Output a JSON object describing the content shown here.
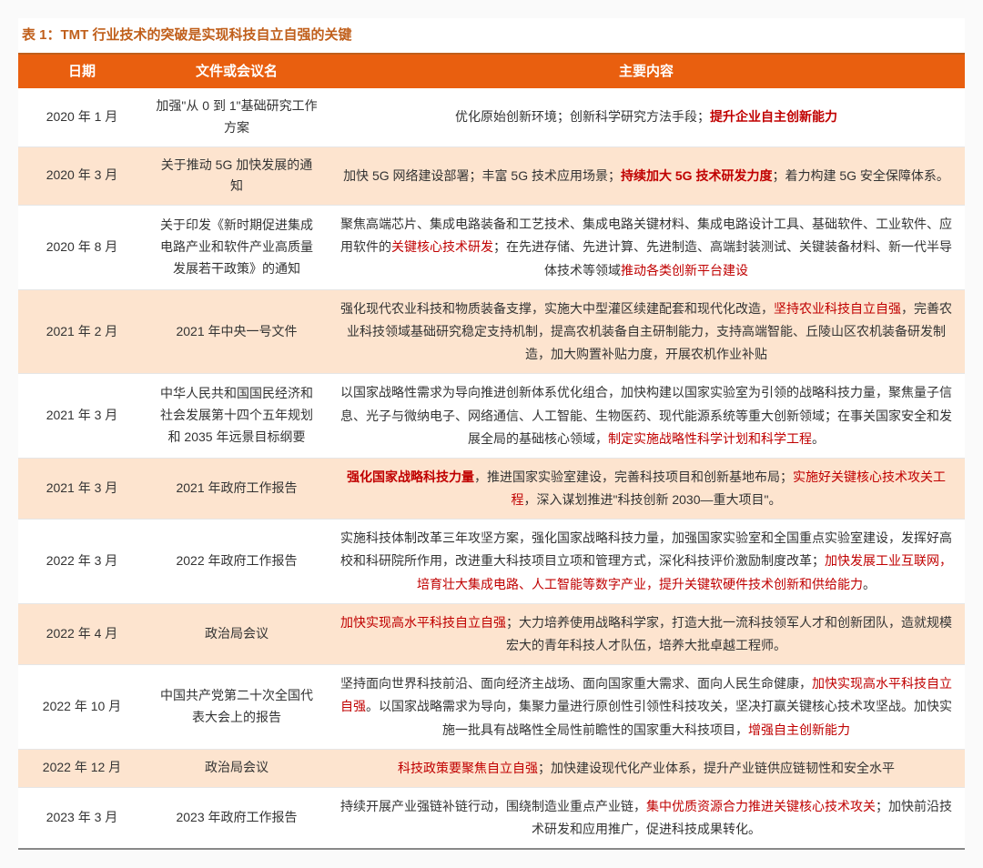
{
  "title": "表 1：TMT 行业技术的突破是实现科技自立自强的关键",
  "headers": {
    "c1": "日期",
    "c2": "文件或会议名",
    "c3": "主要内容"
  },
  "rows": [
    {
      "date": "2020 年 1 月",
      "doc": "加强\"从 0 到 1\"基础研究工作方案",
      "parts": [
        "优化原始创新环境；创新科学研究方法手段；",
        [
          "hl bold",
          "提升企业自主创新能力"
        ]
      ]
    },
    {
      "date": "2020 年 3 月",
      "doc": "关于推动 5G 加快发展的通知",
      "parts": [
        "加快 5G 网络建设部署；丰富 5G 技术应用场景；",
        [
          "hl bold",
          "持续加大 5G 技术研发力度"
        ],
        "；着力构建 5G 安全保障体系。"
      ]
    },
    {
      "date": "2020 年 8 月",
      "doc": "关于印发《新时期促进集成电路产业和软件产业高质量发展若干政策》的通知",
      "parts": [
        "聚焦高端芯片、集成电路装备和工艺技术、集成电路关键材料、集成电路设计工具、基础软件、工业软件、应用软件的",
        [
          "hl",
          "关键核心技术研发"
        ],
        "；在先进存储、先进计算、先进制造、高端封装测试、关键装备材料、新一代半导体技术等领域",
        [
          "hl",
          "推动各类创新平台建设"
        ]
      ]
    },
    {
      "date": "2021 年 2 月",
      "doc": "2021 年中央一号文件",
      "parts": [
        "强化现代农业科技和物质装备支撑，实施大中型灌区续建配套和现代化改造，",
        [
          "hl",
          "坚持农业科技自立自强"
        ],
        "，完善农业科技领域基础研究稳定支持机制，提高农机装备自主研制能力，支持高端智能、丘陵山区农机装备研发制造，加大购置补贴力度，开展农机作业补贴"
      ]
    },
    {
      "date": "2021 年 3 月",
      "doc": "中华人民共和国国民经济和社会发展第十四个五年规划和 2035 年远景目标纲要",
      "parts": [
        "以国家战略性需求为导向推进创新体系优化组合，加快构建以国家实验室为引领的战略科技力量，聚焦量子信息、光子与微纳电子、网络通信、人工智能、生物医药、现代能源系统等重大创新领域；在事关国家安全和发展全局的基础核心领域，",
        [
          "hl",
          "制定实施战略性科学计划和科学工程"
        ],
        "。"
      ]
    },
    {
      "date": "2021 年 3 月",
      "doc": "2021 年政府工作报告",
      "parts": [
        [
          "hl bold",
          "强化国家战略科技力量"
        ],
        "，推进国家实验室建设，完善科技项目和创新基地布局；",
        [
          "hl",
          "实施好关键核心技术攻关工程"
        ],
        "，深入谋划推进\"科技创新 2030—重大项目\"。"
      ]
    },
    {
      "date": "2022 年 3 月",
      "doc": "2022 年政府工作报告",
      "parts": [
        "实施科技体制改革三年攻坚方案，强化国家战略科技力量，加强国家实验室和全国重点实验室建设，发挥好高校和科研院所作用，改进重大科技项目立项和管理方式，深化科技评价激励制度改革；",
        [
          "hl",
          "加快发展工业互联网，培育壮大集成电路、人工智能等数字产业，提升关键软硬件技术创新和供给能力"
        ],
        "。"
      ]
    },
    {
      "date": "2022 年 4 月",
      "doc": "政治局会议",
      "parts": [
        [
          "hl",
          "加快实现高水平科技自立自强"
        ],
        "；大力培养使用战略科学家，打造大批一流科技领军人才和创新团队，造就规模宏大的青年科技人才队伍，培养大批卓越工程师。"
      ]
    },
    {
      "date": "2022 年 10 月",
      "doc": "中国共产党第二十次全国代表大会上的报告",
      "parts": [
        "坚持面向世界科技前沿、面向经济主战场、面向国家重大需求、面向人民生命健康，",
        [
          "hl",
          "加快实现高水平科技自立自强"
        ],
        "。以国家战略需求为导向，集聚力量进行原创性引领性科技攻关，坚决打赢关键核心技术攻坚战。加快实施一批具有战略性全局性前瞻性的国家重大科技项目，",
        [
          "hl",
          "增强自主创新能力"
        ]
      ]
    },
    {
      "date": "2022 年 12 月",
      "doc": "政治局会议",
      "parts": [
        [
          "hl",
          "科技政策要聚焦自立自强"
        ],
        "；加快建设现代化产业体系，提升产业链供应链韧性和安全水平"
      ]
    },
    {
      "date": "2023 年 3 月",
      "doc": "2023 年政府工作报告",
      "parts": [
        "持续开展产业强链补链行动，围绕制造业重点产业链，",
        [
          "hl",
          "集中优质资源合力推进关键核心技术攻关"
        ],
        "；加快前沿技术研发和应用推广，促进科技成果转化。"
      ]
    }
  ],
  "style": {
    "title_color": "#c05f1b",
    "header_bg": "#e95f0f",
    "header_fg": "#ffffff",
    "row_even_bg": "#fde4cf",
    "row_odd_bg": "#ffffff",
    "highlight_color": "#c00000",
    "border_top": "#c05f1b",
    "font_size": 14
  }
}
